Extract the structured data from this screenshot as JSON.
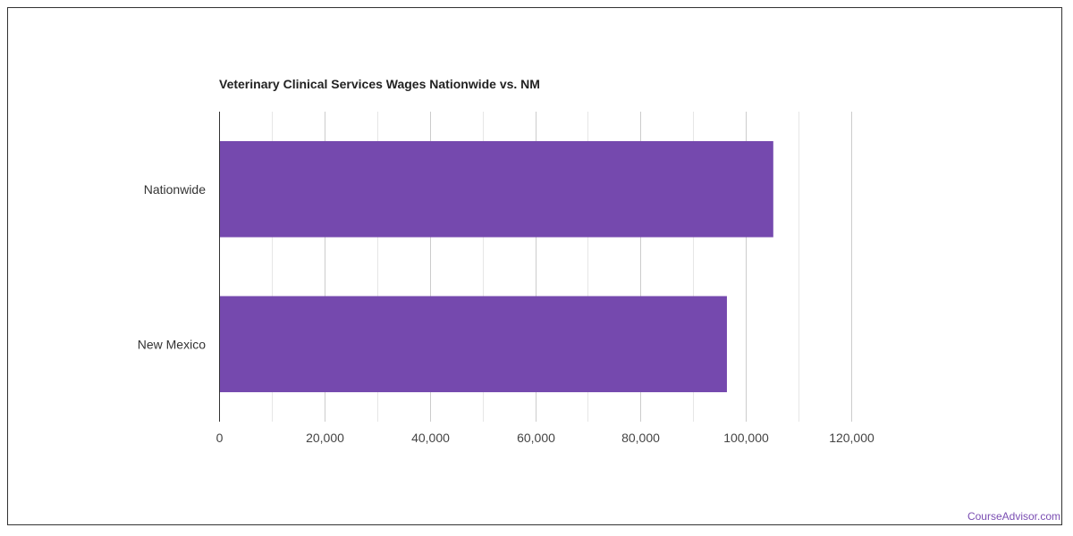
{
  "brand": {
    "watermark": "CourseAdvisor.com",
    "color": "#7a4db2"
  },
  "chart_data": {
    "type": "bar",
    "orientation": "horizontal",
    "title": "Veterinary Clinical Services Wages Nationwide vs. NM",
    "categories": [
      "Nationwide",
      "New Mexico"
    ],
    "values": [
      105200,
      96400
    ],
    "xlim": [
      0,
      120000
    ],
    "xticks": [
      0,
      20000,
      40000,
      60000,
      80000,
      100000,
      120000
    ],
    "xtick_labels": [
      "0",
      "20,000",
      "40,000",
      "60,000",
      "80,000",
      "100,000",
      "120,000"
    ],
    "xlabel": "",
    "ylabel": "",
    "grid": true,
    "legend": "none",
    "bar_color": "#7549ae",
    "grid_color": "#cccccc",
    "minor_grid_color": "#e6e6e6"
  }
}
